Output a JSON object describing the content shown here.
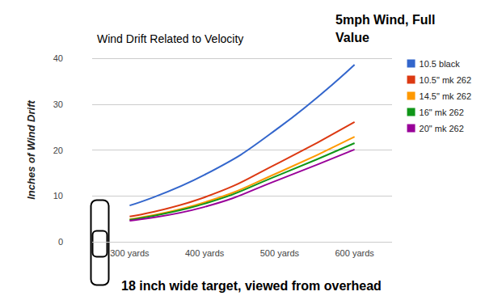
{
  "chart_data": {
    "type": "line",
    "title": "Wind Drift Related to Velocity",
    "annotations": [
      "5mph Wind, Full Value",
      "18 inch wide target, viewed from overhead"
    ],
    "y_label": "Inches of Wind Drift",
    "categories": [
      "300 yards",
      "400 yards",
      "500 yards",
      "600 yards"
    ],
    "series": [
      {
        "name": "10.5 black",
        "color": "#3366cc",
        "values": [
          7.9,
          14.6,
          25.0,
          38.6
        ]
      },
      {
        "name": "10.5\" mk 262",
        "color": "#dc3912",
        "values": [
          5.5,
          9.7,
          17.3,
          26.1
        ]
      },
      {
        "name": "14.5\" mk 262",
        "color": "#ff9900",
        "values": [
          4.9,
          8.6,
          15.2,
          22.9
        ]
      },
      {
        "name": "16\" mk 262",
        "color": "#109618",
        "values": [
          4.8,
          8.3,
          14.6,
          21.5
        ]
      },
      {
        "name": "20\" mk 262",
        "color": "#990099",
        "values": [
          4.6,
          7.6,
          13.6,
          20.1
        ]
      }
    ],
    "ylim": [
      0,
      40
    ],
    "yticks": [
      0,
      10,
      20,
      30,
      40
    ],
    "grid": true,
    "legend": "top-right"
  }
}
